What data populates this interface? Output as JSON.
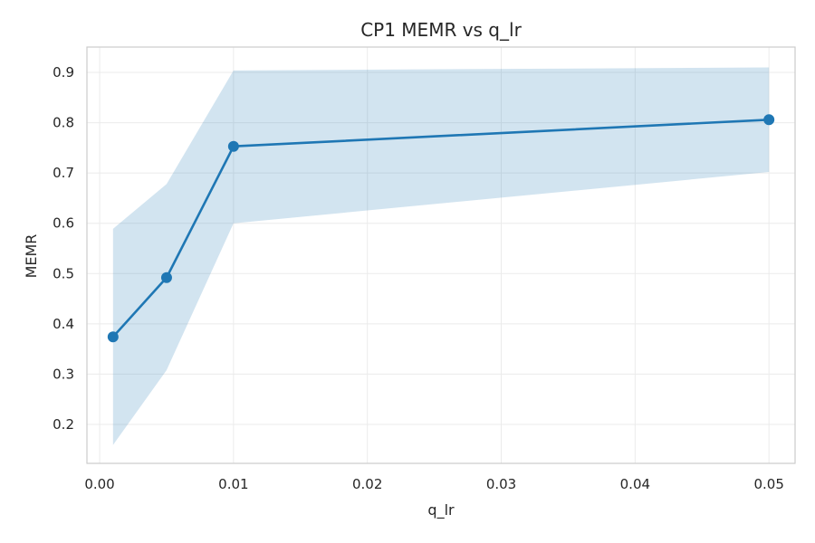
{
  "chart_data": {
    "type": "line",
    "title": "CP1 MEMR vs q_lr",
    "xlabel": "q_lr",
    "ylabel": "MEMR",
    "xlim": [
      -0.00095,
      0.05195
    ],
    "ylim": [
      0.1225,
      0.9505
    ],
    "xticks": [
      0.0,
      0.01,
      0.02,
      0.03,
      0.04,
      0.05
    ],
    "xtick_labels": [
      "0.00",
      "0.01",
      "0.02",
      "0.03",
      "0.04",
      "0.05"
    ],
    "yticks": [
      0.2,
      0.3,
      0.4,
      0.5,
      0.6,
      0.7,
      0.8,
      0.9
    ],
    "ytick_labels": [
      "0.2",
      "0.3",
      "0.4",
      "0.5",
      "0.6",
      "0.7",
      "0.8",
      "0.9"
    ],
    "grid": true,
    "series": [
      {
        "x": [
          0.001,
          0.005,
          0.01,
          0.05
        ],
        "y": [
          0.374,
          0.492,
          0.753,
          0.806
        ],
        "lower": [
          0.159,
          0.308,
          0.6,
          0.702
        ],
        "upper": [
          0.589,
          0.678,
          0.904,
          0.91
        ],
        "color": "#1f77b4",
        "band_color": "#1f77b4"
      }
    ]
  }
}
